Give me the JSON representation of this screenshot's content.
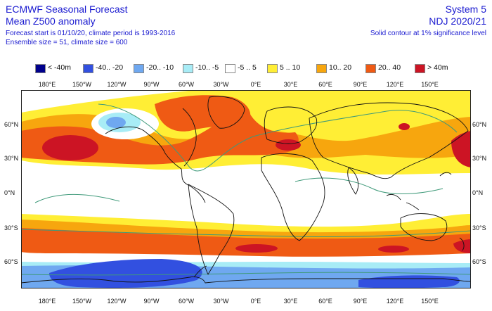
{
  "header": {
    "title": "ECMWF Seasonal Forecast",
    "subtitle": "Mean Z500 anomaly",
    "forecast_info": "Forecast start is 01/10/20, climate period is 1993-2016",
    "ensemble_info": "Ensemble size = 51, climate size = 600",
    "system": "System 5",
    "season": "NDJ 2020/21",
    "significance_note": "Solid contour at 1% significance level"
  },
  "legend": [
    {
      "label": "< -40m",
      "color": "#00008c"
    },
    {
      "label": "-40.. -20",
      "color": "#3250e0"
    },
    {
      "label": "-20.. -10",
      "color": "#6fa8f0"
    },
    {
      "label": "-10.. -5",
      "color": "#a8ecf6"
    },
    {
      "label": "-5 .. 5",
      "color": "#ffffff"
    },
    {
      "label": "5 .. 10",
      "color": "#ffee35"
    },
    {
      "label": "10.. 20",
      "color": "#f7a60e"
    },
    {
      "label": "20.. 40",
      "color": "#ef5a14"
    },
    {
      "label": "> 40m",
      "color": "#cc1424"
    }
  ],
  "axes": {
    "lon_ticks": [
      "180°E",
      "150°W",
      "120°W",
      "90°W",
      "60°W",
      "30°W",
      "0°E",
      "30°E",
      "60°E",
      "90°E",
      "120°E",
      "150°E"
    ],
    "lat_ticks": [
      "60°N",
      "30°N",
      "0°N",
      "30°S",
      "60°S"
    ]
  },
  "colors": {
    "header_text": "#1a1ad0",
    "coastline": "#111111",
    "significance_contour": "#3f9a7a"
  }
}
